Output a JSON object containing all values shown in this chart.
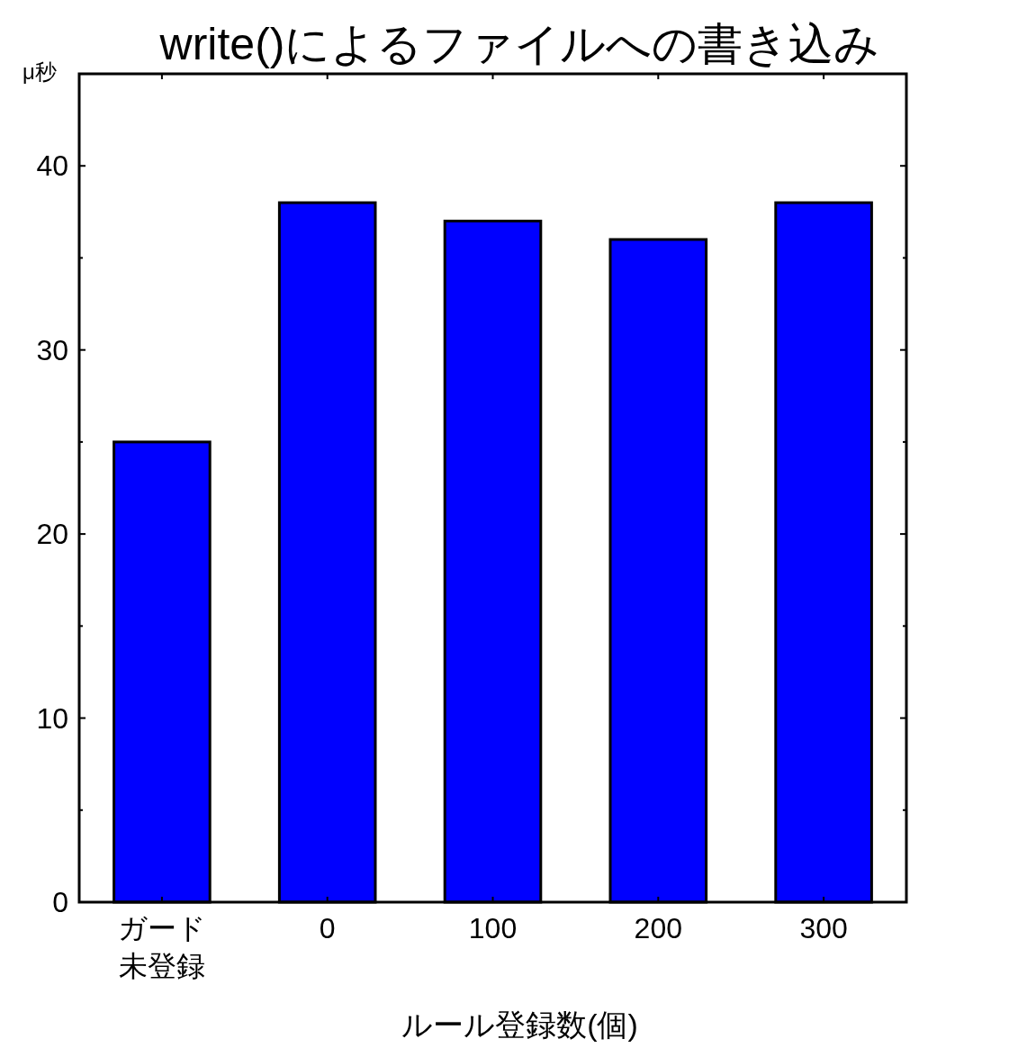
{
  "chart_data": {
    "type": "bar",
    "title": "write()によるファイルへの書き込み",
    "ylabel": "μ秒",
    "xlabel": "ルール登録数(個)",
    "categories": [
      "ガード未登録",
      "0",
      "100",
      "200",
      "300"
    ],
    "values": [
      25,
      38,
      37,
      36,
      38
    ],
    "color": "#0000ff",
    "ylim": [
      0,
      45
    ],
    "yticks": [
      0,
      {
        "value": 5,
        "label": null
      },
      10,
      {
        "value": 15,
        "label": null
      },
      20,
      {
        "value": 25,
        "label": null
      },
      30,
      {
        "value": 35,
        "label": null
      },
      40
    ],
    "grid": false
  }
}
